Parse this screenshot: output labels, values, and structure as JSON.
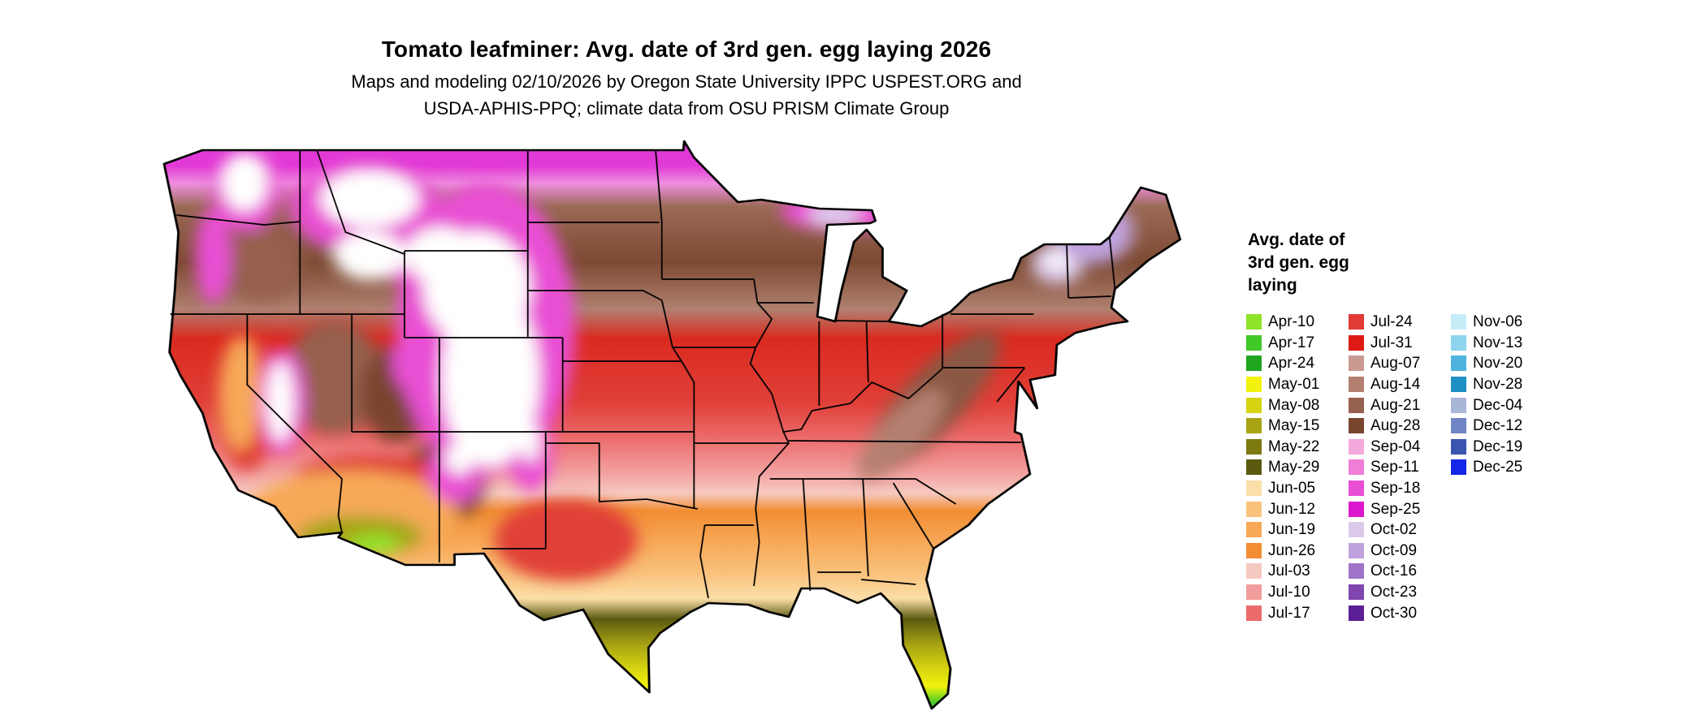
{
  "title": "Tomato leafminer: Avg. date of 3rd gen. egg laying 2026",
  "subtitle": {
    "line1": "Maps and modeling 02/10/2026 by Oregon State University IPPC USPEST.ORG and",
    "line2": "USDA-APHIS-PPQ; climate data from OSU PRISM Climate Group"
  },
  "map": {
    "region": "contiguous United States",
    "overlay": "state boundaries"
  },
  "legend": {
    "title_lines": [
      "Avg. date of",
      "3rd gen. egg",
      "laying"
    ],
    "columns": [
      [
        {
          "label": "Apr-10",
          "color": "#8fe32a"
        },
        {
          "label": "Apr-17",
          "color": "#41c928"
        },
        {
          "label": "Apr-24",
          "color": "#1fa51f"
        },
        {
          "label": "May-01",
          "color": "#f2f20d"
        },
        {
          "label": "May-08",
          "color": "#d6d410"
        },
        {
          "label": "May-15",
          "color": "#a8a414"
        },
        {
          "label": "May-22",
          "color": "#7d7a12"
        },
        {
          "label": "May-29",
          "color": "#5c5a10"
        },
        {
          "label": "Jun-05",
          "color": "#fbdfa9"
        },
        {
          "label": "Jun-12",
          "color": "#f9c37e"
        },
        {
          "label": "Jun-19",
          "color": "#f7a958"
        },
        {
          "label": "Jun-26",
          "color": "#f28d33"
        },
        {
          "label": "Jul-03",
          "color": "#f6c9c0"
        },
        {
          "label": "Jul-10",
          "color": "#f29c9c"
        },
        {
          "label": "Jul-17",
          "color": "#ec6b6b"
        }
      ],
      [
        {
          "label": "Jul-24",
          "color": "#e23b35"
        },
        {
          "label": "Jul-31",
          "color": "#dd1a15"
        },
        {
          "label": "Aug-07",
          "color": "#c89a90"
        },
        {
          "label": "Aug-14",
          "color": "#b37f70"
        },
        {
          "label": "Aug-21",
          "color": "#96604e"
        },
        {
          "label": "Aug-28",
          "color": "#7a452f"
        },
        {
          "label": "Sep-04",
          "color": "#f5a8dc"
        },
        {
          "label": "Sep-11",
          "color": "#f07ed7"
        },
        {
          "label": "Sep-18",
          "color": "#e94fd4"
        },
        {
          "label": "Sep-25",
          "color": "#dd17ce"
        },
        {
          "label": "Oct-02",
          "color": "#dcc9ea"
        },
        {
          "label": "Oct-09",
          "color": "#bfa2dc"
        },
        {
          "label": "Oct-16",
          "color": "#9f74c8"
        },
        {
          "label": "Oct-23",
          "color": "#7e46ae"
        },
        {
          "label": "Oct-30",
          "color": "#5d1f95"
        }
      ],
      [
        {
          "label": "Nov-06",
          "color": "#c6ecf8"
        },
        {
          "label": "Nov-13",
          "color": "#8ed4ee"
        },
        {
          "label": "Nov-20",
          "color": "#4fb3df"
        },
        {
          "label": "Nov-28",
          "color": "#1e8fc4"
        },
        {
          "label": "Dec-04",
          "color": "#a9b6d8"
        },
        {
          "label": "Dec-12",
          "color": "#7186c4"
        },
        {
          "label": "Dec-19",
          "color": "#3a55b0"
        },
        {
          "label": "Dec-25",
          "color": "#1426e8"
        }
      ]
    ]
  }
}
